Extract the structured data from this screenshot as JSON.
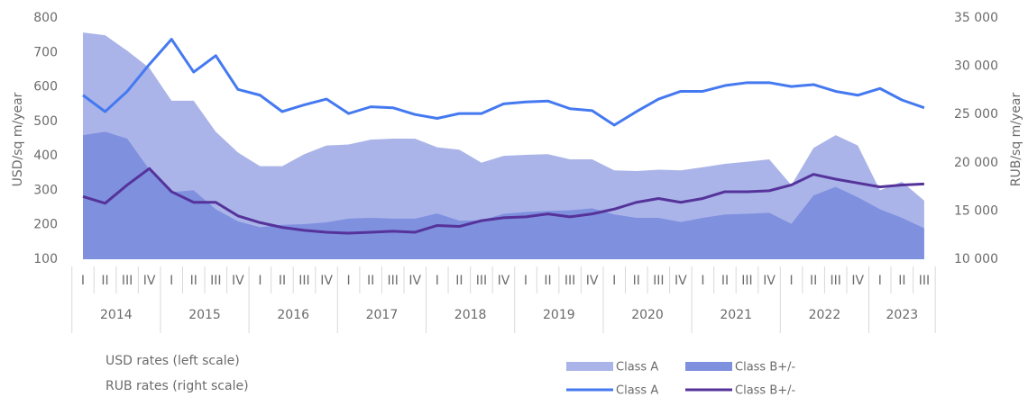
{
  "chart_data": {
    "type": "combo",
    "ylabel": "USD/sq m/year",
    "y2label": "RUB/sq m/year",
    "legend_groups": [
      "USD rates (left scale)",
      "RUB rates (right scale)"
    ],
    "categories": [
      "I",
      "II",
      "III",
      "IV",
      "I",
      "II",
      "III",
      "IV",
      "I",
      "II",
      "III",
      "IV",
      "I",
      "II",
      "III",
      "IV",
      "I",
      "II",
      "III",
      "IV",
      "I",
      "II",
      "III",
      "IV",
      "I",
      "II",
      "III",
      "IV",
      "I",
      "II",
      "III",
      "IV",
      "I",
      "II",
      "III",
      "IV",
      "I",
      "II",
      "III"
    ],
    "years": [
      "2014",
      "2015",
      "2016",
      "2017",
      "2018",
      "2019",
      "2020",
      "2021",
      "2022",
      "2023"
    ],
    "ylim": [
      100,
      800
    ],
    "yticks": [
      100,
      200,
      300,
      400,
      500,
      600,
      700,
      800
    ],
    "y2lim": [
      10000,
      35000
    ],
    "y2ticks": [
      {
        "value": 10000,
        "label": "10 000"
      },
      {
        "value": 15000,
        "label": "15 000"
      },
      {
        "value": 20000,
        "label": "20 000"
      },
      {
        "value": 25000,
        "label": "25 000"
      },
      {
        "value": 30000,
        "label": "30 000"
      },
      {
        "value": 35000,
        "label": "35 000"
      }
    ],
    "grid": false,
    "series": [
      {
        "name": "Class A",
        "kind": "area",
        "color": "#aab4e9",
        "values": [
          758,
          750,
          705,
          655,
          560,
          560,
          470,
          410,
          370,
          370,
          405,
          430,
          433,
          447,
          450,
          450,
          425,
          418,
          380,
          400,
          403,
          405,
          390,
          390,
          358,
          356,
          360,
          358,
          367,
          377,
          383,
          390,
          315,
          423,
          460,
          430,
          300,
          325,
          270
        ]
      },
      {
        "name": "Class B+/-",
        "kind": "area",
        "color": "#7f90df",
        "values": [
          460,
          470,
          450,
          360,
          295,
          300,
          245,
          210,
          193,
          200,
          202,
          207,
          218,
          220,
          218,
          218,
          233,
          212,
          213,
          232,
          237,
          240,
          242,
          248,
          230,
          220,
          220,
          208,
          220,
          230,
          232,
          235,
          203,
          285,
          310,
          280,
          245,
          220,
          190
        ]
      },
      {
        "name": "Class A",
        "kind": "line",
        "axis": "y2",
        "color": "#4479f0",
        "values": [
          27000,
          25300,
          27400,
          30200,
          32800,
          29400,
          31100,
          27600,
          27000,
          25300,
          26000,
          26600,
          25100,
          25800,
          25700,
          25000,
          24600,
          25100,
          25100,
          26100,
          26300,
          26400,
          25600,
          25400,
          23900,
          25300,
          26600,
          27400,
          27400,
          28000,
          28300,
          28300,
          27900,
          28100,
          27400,
          27000,
          27700,
          26500,
          25700
        ]
      },
      {
        "name": "Class B+/-",
        "kind": "line",
        "axis": "y2",
        "color": "#55339a",
        "values": [
          16500,
          15800,
          17700,
          19400,
          17000,
          15900,
          15900,
          14500,
          13800,
          13300,
          13000,
          12800,
          12700,
          12800,
          12900,
          12800,
          13500,
          13400,
          14000,
          14300,
          14400,
          14700,
          14400,
          14700,
          15200,
          15900,
          16300,
          15900,
          16300,
          17000,
          17000,
          17100,
          17700,
          18800,
          18300,
          17900,
          17500,
          17700,
          17800
        ]
      }
    ]
  }
}
